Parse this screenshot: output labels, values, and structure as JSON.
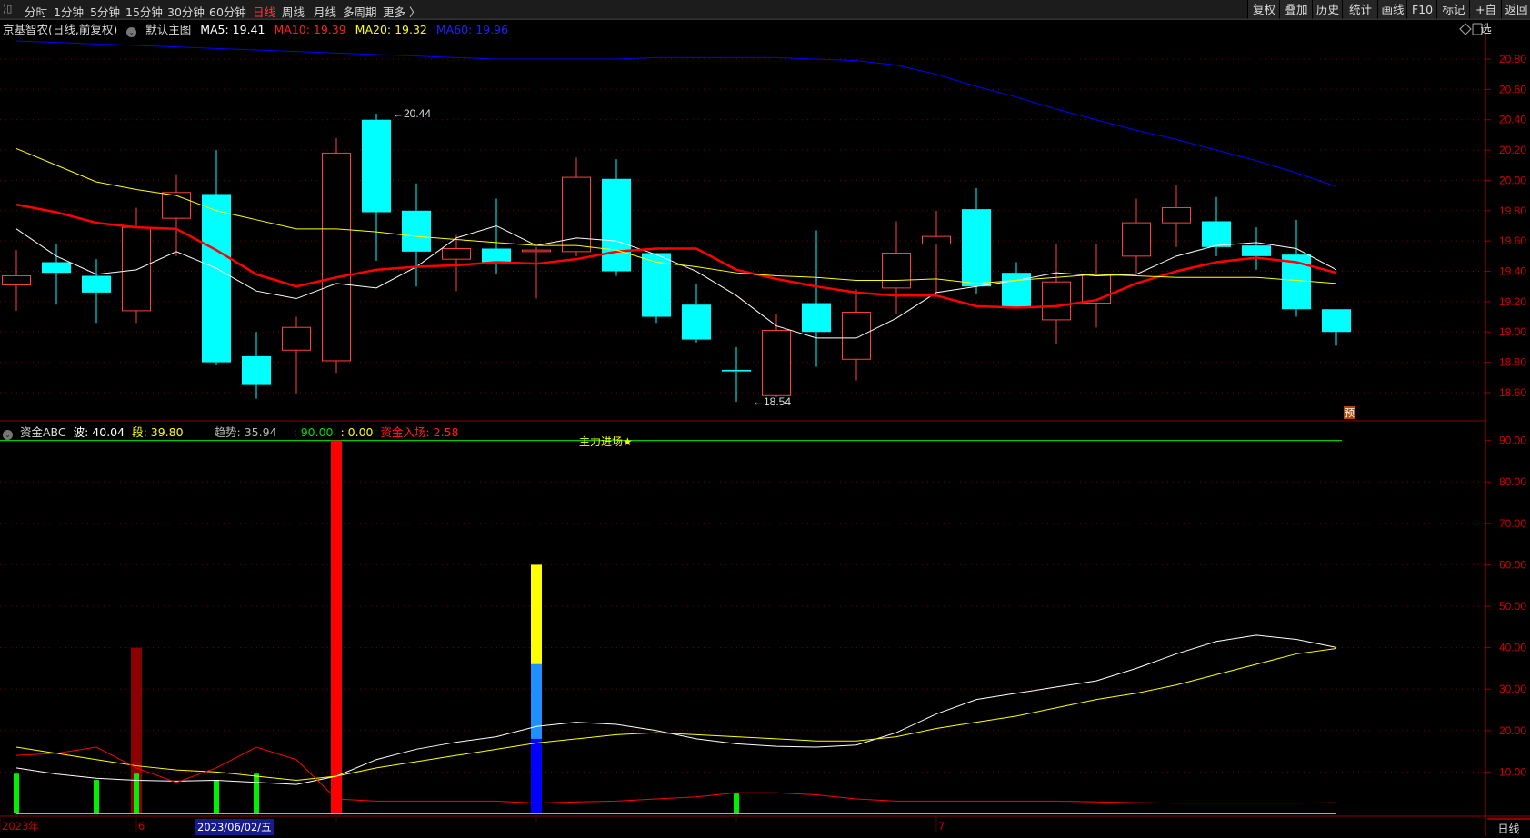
{
  "toolbar": {
    "tabs": [
      {
        "label": "分时"
      },
      {
        "label": "1分钟"
      },
      {
        "label": "5分钟"
      },
      {
        "label": "15分钟"
      },
      {
        "label": "30分钟"
      },
      {
        "label": "60分钟"
      },
      {
        "label": "日线",
        "active": true
      },
      {
        "label": "周线"
      },
      {
        "label": "月线"
      },
      {
        "label": "多周期"
      },
      {
        "label": "更多 〉"
      }
    ],
    "buttons": [
      {
        "label": "复权"
      },
      {
        "label": "叠加"
      },
      {
        "label": "历史"
      },
      {
        "label": "统计"
      },
      {
        "label": "画线"
      },
      {
        "label": "F10"
      },
      {
        "label": "标记"
      },
      {
        "label": "+自选"
      },
      {
        "label": "返回"
      }
    ]
  },
  "header": {
    "stock": "京基智农(日线,前复权)",
    "template": "默认主图",
    "ma5": "MA5: 19.41",
    "ma10": "MA10: 19.39",
    "ma20": "MA20: 19.32",
    "ma60": "MA60: 19.96"
  },
  "indicator_header": {
    "name": "资金ABC",
    "wave": "波: 40.04",
    "segment": "段: 39.80",
    "trend": "趋势: 35.94",
    "upper": ": 90.00",
    "lower": ": 0.00",
    "inflow": "资金入场: 2.58"
  },
  "colors": {
    "up": "#ff4040",
    "down": "#00ffff",
    "ma5": "#ffffff",
    "ma10": "#ff0000",
    "ma20": "#ffff00",
    "ma60": "#0000ff",
    "axis": "#8b0000",
    "grid": "#7a0000"
  },
  "icons": [
    "collapse-icon",
    "template-dropdown-icon",
    "diamond-icon",
    "panel-toggle-icon"
  ],
  "forecast_badge": "预",
  "day_button": "日线",
  "chart_data": [
    {
      "type": "candlestick",
      "ylim": [
        18.5,
        20.9
      ],
      "yticks": [
        "20.80",
        "20.60",
        "20.40",
        "20.20",
        "20.00",
        "19.80",
        "19.60",
        "19.40",
        "19.20",
        "19.00",
        "18.80",
        "18.60"
      ],
      "grid": true,
      "candles_ohlc": [
        [
          19.31,
          19.54,
          19.14,
          19.37
        ],
        [
          19.46,
          19.58,
          19.18,
          19.39
        ],
        [
          19.37,
          19.48,
          19.06,
          19.26
        ],
        [
          19.14,
          19.82,
          19.06,
          19.69
        ],
        [
          19.75,
          20.04,
          19.5,
          19.92
        ],
        [
          19.91,
          20.2,
          18.78,
          18.8
        ],
        [
          18.84,
          19.0,
          18.56,
          18.65
        ],
        [
          18.88,
          19.1,
          18.59,
          19.03
        ],
        [
          18.81,
          20.28,
          18.73,
          20.18
        ],
        [
          20.4,
          20.44,
          19.47,
          19.79
        ],
        [
          19.8,
          19.98,
          19.3,
          19.53
        ],
        [
          19.48,
          19.64,
          19.27,
          19.55
        ],
        [
          19.55,
          19.88,
          19.38,
          19.46
        ],
        [
          19.53,
          19.56,
          19.22,
          19.54
        ],
        [
          19.53,
          20.15,
          19.5,
          20.02
        ],
        [
          20.01,
          20.14,
          19.37,
          19.4
        ],
        [
          19.52,
          19.52,
          19.06,
          19.1
        ],
        [
          19.18,
          19.32,
          18.93,
          18.95
        ],
        [
          18.75,
          18.9,
          18.54,
          18.74
        ],
        [
          18.58,
          19.12,
          18.57,
          19.01
        ],
        [
          19.19,
          19.67,
          18.77,
          19.0
        ],
        [
          18.82,
          19.28,
          18.68,
          19.13
        ],
        [
          19.29,
          19.73,
          19.12,
          19.52
        ],
        [
          19.58,
          19.8,
          19.26,
          19.63
        ],
        [
          19.81,
          19.95,
          19.25,
          19.3
        ],
        [
          19.39,
          19.46,
          19.16,
          19.16
        ],
        [
          19.08,
          19.58,
          18.92,
          19.33
        ],
        [
          19.19,
          19.58,
          19.03,
          19.38
        ],
        [
          19.5,
          19.88,
          19.38,
          19.72
        ],
        [
          19.72,
          19.97,
          19.56,
          19.82
        ],
        [
          19.73,
          19.89,
          19.5,
          19.56
        ],
        [
          19.57,
          19.69,
          19.41,
          19.5
        ],
        [
          19.51,
          19.74,
          19.1,
          19.15
        ],
        [
          19.15,
          19.15,
          18.91,
          19.0
        ]
      ],
      "series": [
        {
          "name": "MA5",
          "values": [
            19.68,
            19.5,
            19.38,
            19.41,
            19.53,
            19.42,
            19.27,
            19.22,
            19.32,
            19.29,
            19.43,
            19.62,
            19.7,
            19.57,
            19.62,
            19.6,
            19.51,
            19.4,
            19.24,
            19.04,
            18.96,
            18.96,
            19.09,
            19.26,
            19.3,
            19.34,
            19.39,
            19.37,
            19.38,
            19.5,
            19.57,
            19.59,
            19.55,
            19.41
          ]
        },
        {
          "name": "MA10",
          "values": [
            19.84,
            19.79,
            19.72,
            19.69,
            19.68,
            19.54,
            19.38,
            19.3,
            19.36,
            19.41,
            19.43,
            19.44,
            19.46,
            19.45,
            19.48,
            19.53,
            19.55,
            19.55,
            19.41,
            19.35,
            19.3,
            19.26,
            19.24,
            19.24,
            19.17,
            19.16,
            19.17,
            19.21,
            19.32,
            19.4,
            19.46,
            19.49,
            19.46,
            19.39
          ]
        },
        {
          "name": "MA20",
          "values": [
            20.21,
            20.1,
            19.99,
            19.94,
            19.9,
            19.8,
            19.74,
            19.68,
            19.68,
            19.66,
            19.63,
            19.61,
            19.59,
            19.57,
            19.57,
            19.54,
            19.46,
            19.43,
            19.39,
            19.37,
            19.36,
            19.34,
            19.34,
            19.35,
            19.32,
            19.34,
            19.36,
            19.38,
            19.37,
            19.36,
            19.36,
            19.36,
            19.34,
            19.32
          ]
        },
        {
          "name": "MA60",
          "values": [
            20.92,
            20.91,
            20.9,
            20.89,
            20.88,
            20.87,
            20.86,
            20.85,
            20.84,
            20.83,
            20.82,
            20.81,
            20.8,
            20.8,
            20.8,
            20.8,
            20.81,
            20.81,
            20.81,
            20.81,
            20.8,
            20.79,
            20.76,
            20.7,
            20.62,
            20.55,
            20.47,
            20.4,
            20.33,
            20.27,
            20.2,
            20.13,
            20.05,
            19.96
          ]
        }
      ],
      "annotations": [
        {
          "text": "20.44",
          "candle": 10,
          "at": "high"
        },
        {
          "text": "18.54",
          "candle": 19,
          "at": "low"
        }
      ]
    },
    {
      "type": "bar+line",
      "ylim": [
        0,
        92
      ],
      "yticks": [
        "90.00",
        "80.00",
        "70.00",
        "60.00",
        "50.00",
        "40.00",
        "30.00",
        "20.00",
        "10.00"
      ],
      "grid": true,
      "green_bars": [
        {
          "candle": 1,
          "value": 9.6
        },
        {
          "candle": 3,
          "value": 8.1
        },
        {
          "candle": 4,
          "value": 9.6
        },
        {
          "candle": 6,
          "value": 8.1
        },
        {
          "candle": 7,
          "value": 9.6
        },
        {
          "candle": 19,
          "value": 4.8
        }
      ],
      "stacked_bars": [
        {
          "candle": 4,
          "segments": [
            {
              "from": 0,
              "to": 40,
              "color": "#8b0000"
            }
          ]
        },
        {
          "candle": 9,
          "segments": [
            {
              "from": 0,
              "to": 90,
              "color": "#ff0000"
            }
          ]
        },
        {
          "candle": 14,
          "segments": [
            {
              "from": 0,
              "to": 18,
              "color": "#0000ff"
            },
            {
              "from": 18,
              "to": 36,
              "color": "#1e90ff"
            },
            {
              "from": 36,
              "to": 60,
              "color": "#ffff00"
            }
          ]
        }
      ],
      "hline": {
        "value": 90,
        "color": "#00cc00"
      },
      "signal_text": "主力进场★",
      "series": [
        {
          "name": "波",
          "color": "#ffffff",
          "values": [
            11,
            9.5,
            8.5,
            8,
            7.8,
            8,
            7.5,
            7,
            9,
            13,
            15.5,
            17.2,
            18.5,
            21,
            22,
            21.5,
            20,
            18,
            16.8,
            16.2,
            16,
            16.5,
            19.5,
            24,
            27.5,
            29,
            30.5,
            32,
            35,
            38.5,
            41.5,
            43,
            42,
            40.04
          ]
        },
        {
          "name": "段",
          "color": "#ffff00",
          "values": [
            16,
            14.5,
            13,
            11.5,
            10.5,
            10,
            9,
            8,
            9,
            11,
            12.5,
            14,
            15.5,
            17,
            18,
            19,
            19.5,
            19,
            18.5,
            18,
            17.5,
            17.5,
            18.5,
            20.5,
            22,
            23.5,
            25.5,
            27.5,
            29,
            31,
            33.5,
            36,
            38.5,
            39.8
          ]
        },
        {
          "name": "资金入场",
          "color": "#ff0000",
          "values": [
            14,
            14.5,
            16,
            11,
            7.5,
            11,
            16,
            13,
            3.5,
            3,
            3,
            3,
            3,
            2.5,
            2.8,
            3,
            3.5,
            4,
            5,
            5,
            4.5,
            3.5,
            3,
            3,
            3,
            3,
            3,
            2.8,
            2.6,
            2.5,
            2.5,
            2.5,
            2.5,
            2.58
          ]
        },
        {
          "name": "0.00",
          "color": "#ffff00",
          "values": [
            0,
            0,
            0,
            0,
            0,
            0,
            0,
            0,
            0,
            0,
            0,
            0,
            0,
            0,
            0,
            0,
            0,
            0,
            0,
            0,
            0,
            0,
            0,
            0,
            0,
            0,
            0,
            0,
            0,
            0,
            0,
            0,
            0,
            0
          ]
        }
      ]
    }
  ],
  "xaxis": {
    "labels": [
      {
        "text": "2023年",
        "candle": 1,
        "color": "#cc0000"
      },
      {
        "text": "6",
        "candle": 4,
        "color": "#cc0000"
      },
      {
        "text": "7",
        "candle": 24,
        "color": "#cc0000"
      }
    ],
    "cursor_date": "2023/06/02/五"
  }
}
